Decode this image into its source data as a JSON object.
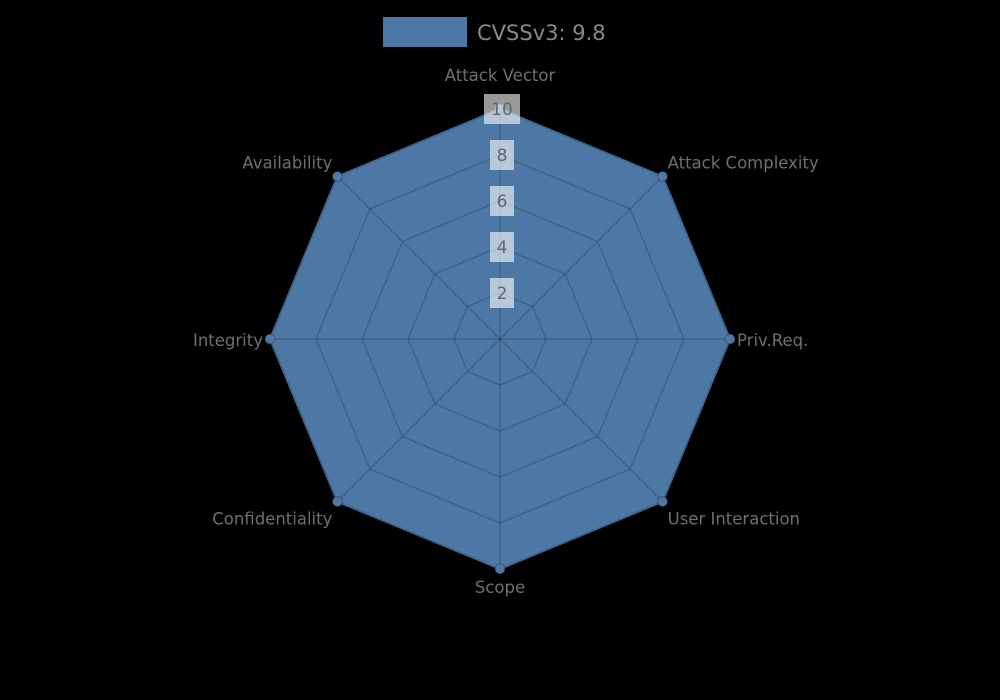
{
  "legend": {
    "label": "CVSSv3: 9.8",
    "swatch_color": "#4d78a5"
  },
  "chart_data": {
    "type": "radar",
    "title": "CVSSv3: 9.8",
    "categories": [
      "Attack Vector",
      "Attack Complexity",
      "Priv.Req.",
      "User Interaction",
      "Scope",
      "Confidentiality",
      "Integrity",
      "Availability"
    ],
    "series": [
      {
        "name": "CVSSv3: 9.8",
        "values": [
          10,
          10,
          10,
          10,
          10,
          10,
          10,
          10
        ]
      }
    ],
    "ticks": [
      2,
      4,
      6,
      8,
      10
    ],
    "rlim": [
      0,
      10
    ],
    "grid": true,
    "legend_position": "top-center",
    "colors": {
      "background": "#000000",
      "fill": "#4d78a5",
      "marker": "#4d78a5",
      "grid_line": "rgba(0,0,0,0.2)",
      "tick_box": "rgba(255,255,255,0.6)",
      "tick_text": "#666666",
      "label_text": "#6f6f6f",
      "legend_text": "#8a8a8a"
    }
  }
}
